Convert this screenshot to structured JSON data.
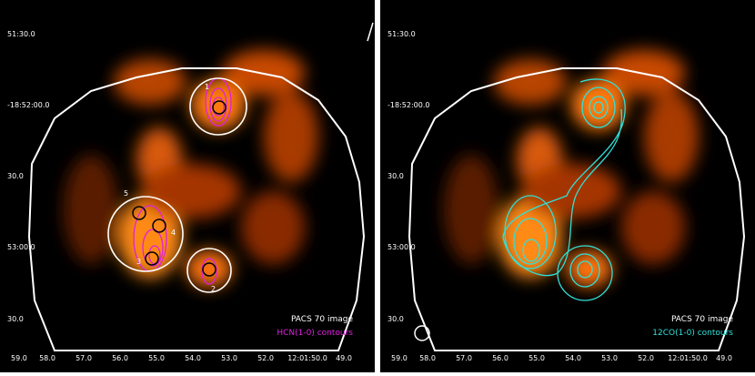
{
  "panels": [
    {
      "y_labels": [
        "51:30.0",
        "-18:52:00.0",
        "30.0",
        "53:00.0",
        "30.0"
      ],
      "x_labels": [
        "59.0",
        "58.0",
        "57.0",
        "56.0",
        "55.0",
        "54.0",
        "53.0",
        "52.0",
        "12:01:50.0",
        "49.0"
      ],
      "source_labels": [
        "1",
        "2",
        "3",
        "4",
        "5"
      ],
      "legend": [
        "PACS 70 image",
        "HCN(1-0) contours"
      ]
    },
    {
      "y_labels": [
        "51:30.0",
        "-18:52:00.0",
        "30.0",
        "53:00.0",
        "30.0"
      ],
      "x_labels": [
        "59.0",
        "58.0",
        "57.0",
        "56.0",
        "55.0",
        "54.0",
        "53.0",
        "52.0",
        "12:01:50.0",
        "49.0"
      ],
      "legend": [
        "PACS 70 image",
        "12CO(1-0) contours"
      ]
    }
  ]
}
